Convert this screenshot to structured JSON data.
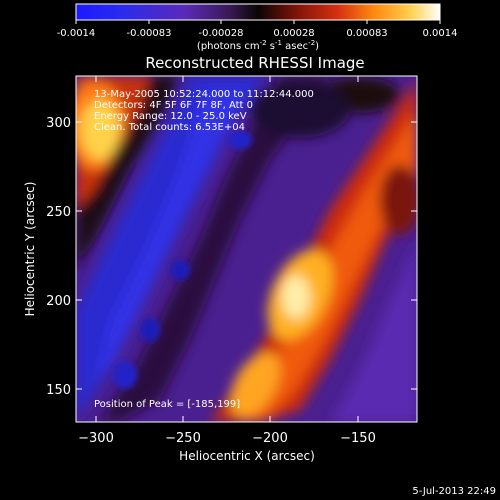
{
  "colorbar": {
    "ticks": [
      "-0.0014",
      "-0.00083",
      "-0.00028",
      "0.00028",
      "0.00083",
      "0.0014"
    ],
    "unit_prefix": "(photons cm",
    "unit_exp1": "-2",
    "unit_mid": " s",
    "unit_exp2": "-1",
    "unit_mid2": " asec",
    "unit_exp3": "-2",
    "unit_suffix": ")"
  },
  "chart_data": {
    "type": "heatmap",
    "title": "Reconstructed RHESSI Image",
    "xlabel": "Heliocentric X (arcsec)",
    "ylabel": "Heliocentric Y (arcsec)",
    "xlim": [
      -312,
      -117
    ],
    "ylim": [
      130,
      325
    ],
    "xticks": [
      -300,
      -250,
      -200,
      -150
    ],
    "yticks": [
      150,
      200,
      250,
      300
    ],
    "xtick_labels": [
      "−300",
      "−250",
      "−200",
      "−150"
    ],
    "ytick_labels": [
      "150",
      "200",
      "250",
      "300"
    ],
    "colorbar_range": [
      -0.0014,
      0.0014
    ],
    "annotations": [
      "13-May-2005 10:52:24.000 to 11:12:44.000",
      "Detectors: 4F 5F 6F 7F 8F, Att 0",
      "Energy Range: 12.0 - 25.0 keV",
      "Clean. Total counts: 6.53E+04"
    ],
    "peak_label": "Position of Peak = [-185,199]",
    "peak": [
      -185,
      199
    ]
  },
  "footer": {
    "date": "5-Jul-2013 22:49"
  }
}
